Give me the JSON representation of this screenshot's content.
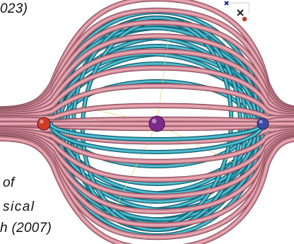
{
  "captions": {
    "top": "023)",
    "line1": "of",
    "line2": "sical",
    "line3": "h (2007)"
  },
  "colors": {
    "pink_tube": "#d88a98",
    "pink_tube_edge": "#7a4754",
    "cyan_tube": "#2ea6bb",
    "cyan_tube_edge": "#0f5563",
    "red_charge": "#d23a26",
    "purple_charge": "#7a2a8a",
    "blue_charge": "#3a4aa8",
    "axis_red": "#c0392b",
    "axis_blue": "#1a2a8a",
    "axis_green": "#33aa55"
  },
  "icons": {
    "axis_gizmo": "3d-axis-orientation-gizmo",
    "charges": [
      "red-sphere",
      "purple-sphere",
      "blue-sphere"
    ]
  }
}
